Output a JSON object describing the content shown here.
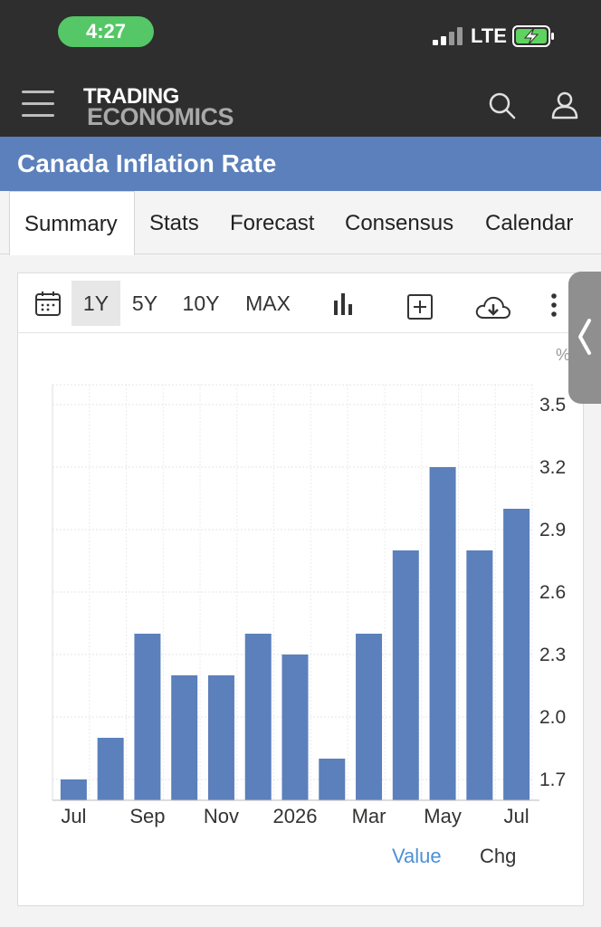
{
  "status": {
    "time": "4:27",
    "network": "LTE"
  },
  "header": {
    "logo_line1": "TRADING",
    "logo_line2": "ECONOMICS"
  },
  "page_title": "Canada Inflation Rate",
  "tabs": [
    {
      "label": "Summary",
      "active": true
    },
    {
      "label": "Stats",
      "active": false
    },
    {
      "label": "Forecast",
      "active": false
    },
    {
      "label": "Consensus",
      "active": false
    },
    {
      "label": "Calendar",
      "active": false
    }
  ],
  "toolbar": {
    "ranges": [
      "1Y",
      "5Y",
      "10Y",
      "MAX"
    ],
    "active_range": "1Y"
  },
  "unit_label": "%",
  "legend": {
    "value": "Value",
    "chg": "Chg"
  },
  "colors": {
    "bar": "#5b80bb",
    "title_bar": "#5b80bb",
    "header": "#2e2e2e",
    "time_pill": "#55c766",
    "legend_value": "#4e8fd6"
  },
  "chart_data": {
    "type": "bar",
    "categories": [
      "Jul 2025",
      "Aug 2025",
      "Sep 2025",
      "Oct 2025",
      "Nov 2025",
      "Dec 2025",
      "Jan 2026",
      "Feb 2026",
      "Mar 2026",
      "Apr 2026",
      "May 2026",
      "Jun 2026",
      "Jul 2026"
    ],
    "values": [
      1.7,
      1.9,
      2.4,
      2.2,
      2.2,
      2.4,
      2.3,
      1.8,
      2.4,
      2.8,
      3.2,
      2.8,
      3.0
    ],
    "x_tick_labels": [
      "Jul",
      "Sep",
      "Nov",
      "2026",
      "Mar",
      "May",
      "Jul"
    ],
    "x_tick_indices": [
      0,
      2,
      4,
      6,
      8,
      10,
      12
    ],
    "y_ticks": [
      "1.7",
      "2.0",
      "2.3",
      "2.6",
      "2.9",
      "3.2",
      "3.5"
    ],
    "ylim": [
      1.6,
      3.5
    ],
    "y_axis_side": "right",
    "grid": true
  }
}
